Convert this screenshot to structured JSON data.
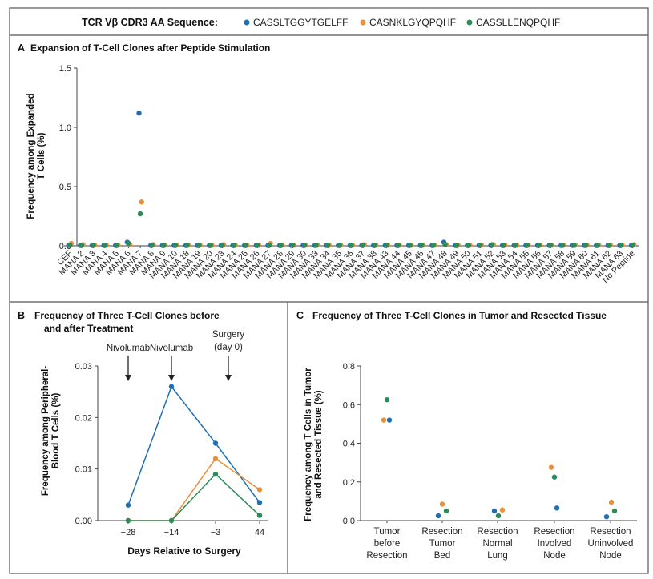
{
  "legend": {
    "title": "TCR Vβ CDR3 AA Sequence:",
    "items": [
      {
        "label": "CASSLTGGYTGELFF",
        "color": "#1f6fb4"
      },
      {
        "label": "CASNKLGYQPQHF",
        "color": "#e8913a"
      },
      {
        "label": "CASSLLENQPQHF",
        "color": "#2e8b57"
      }
    ]
  },
  "panels": {
    "a": {
      "letter": "A",
      "title": "Expansion of T-Cell Clones after Peptide Stimulation",
      "ylabel_line1": "Frequency among Expanded",
      "ylabel_line2": "T Cells (%)"
    },
    "b": {
      "letter": "B",
      "title_line1": "Frequency of Three T-Cell Clones before",
      "title_line2": "and after Treatment",
      "ylabel_line1": "Frequency among Peripheral-",
      "ylabel_line2": "Blood T Cells (%)",
      "xlabel": "Days Relative to Surgery"
    },
    "c": {
      "letter": "C",
      "title": "Frequency of Three T-Cell Clones in Tumor and Resected Tissue",
      "ylabel_line1": "Frequency among T Cells in Tumor",
      "ylabel_line2": "and Resected Tissue (%)"
    }
  },
  "chart_data": [
    {
      "type": "scatter",
      "ylim": [
        0,
        1.5
      ],
      "yticks": [
        "0.0",
        "0.5",
        "1.0",
        "1.5"
      ],
      "categories": [
        "CEF",
        "MANA 2",
        "MANA 3",
        "MANA 4",
        "MANA 5",
        "MANA 6",
        "MANA 7",
        "MANA 8",
        "MANA 9",
        "MANA 10",
        "MANA 18",
        "MANA 19",
        "MANA 20",
        "MANA 23",
        "MANA 24",
        "MANA 25",
        "MANA 26",
        "MANA 27",
        "MANA 28",
        "MANA 29",
        "MANA 30",
        "MANA 33",
        "MANA 34",
        "MANA 35",
        "MANA 36",
        "MANA 37",
        "MANA 38",
        "MANA 43",
        "MANA 44",
        "MANA 45",
        "MANA 46",
        "MANA 47",
        "MANA 48",
        "MANA 49",
        "MANA 50",
        "MANA 51",
        "MANA 52",
        "MANA 53",
        "MANA 54",
        "MANA 55",
        "MANA 56",
        "MANA 57",
        "MANA 58",
        "MANA 59",
        "MANA 60",
        "MANA 61",
        "MANA 62",
        "MANA 63",
        "No Peptide"
      ],
      "series": [
        {
          "name": "CASSLTGGYTGELFF",
          "values": [
            0.003,
            0.003,
            0.003,
            0.003,
            0.003,
            0.03,
            1.12,
            0.003,
            0.003,
            0.003,
            0.003,
            0.003,
            0.003,
            0.003,
            0.003,
            0.003,
            0.003,
            0.003,
            0.003,
            0.003,
            0.003,
            0.003,
            0.003,
            0.003,
            0.003,
            0.003,
            0.003,
            0.003,
            0.003,
            0.003,
            0.003,
            0.003,
            0.03,
            0.003,
            0.003,
            0.003,
            0.003,
            0.003,
            0.003,
            0.003,
            0.003,
            0.003,
            0.003,
            0.003,
            0.003,
            0.003,
            0.003,
            0.003,
            0.003
          ]
        },
        {
          "name": "CASNKLGYQPQHF",
          "values": [
            0.02,
            0.01,
            0.005,
            0.005,
            0.005,
            0.01,
            0.37,
            0.01,
            0.005,
            0.005,
            0.005,
            0.005,
            0.005,
            0.01,
            0.005,
            0.005,
            0.005,
            0.02,
            0.005,
            0.005,
            0.005,
            0.005,
            0.005,
            0.005,
            0.005,
            0.01,
            0.005,
            0.005,
            0.005,
            0.005,
            0.005,
            0.005,
            0.01,
            0.005,
            0.005,
            0.005,
            0.01,
            0.005,
            0.005,
            0.005,
            0.005,
            0.005,
            0.005,
            0.005,
            0.005,
            0.005,
            0.005,
            0.005,
            0.01
          ]
        },
        {
          "name": "CASSLLENQPQHF",
          "values": [
            0.005,
            0.005,
            0.005,
            0.005,
            0.005,
            0.02,
            0.27,
            0.005,
            0.005,
            0.005,
            0.005,
            0.005,
            0.005,
            0.005,
            0.005,
            0.005,
            0.005,
            0.005,
            0.005,
            0.005,
            0.005,
            0.005,
            0.005,
            0.005,
            0.005,
            0.005,
            0.005,
            0.005,
            0.005,
            0.005,
            0.005,
            0.005,
            0.01,
            0.005,
            0.005,
            0.005,
            0.01,
            0.005,
            0.005,
            0.005,
            0.005,
            0.005,
            0.005,
            0.005,
            0.005,
            0.005,
            0.005,
            0.005,
            0.005
          ]
        }
      ]
    },
    {
      "type": "line",
      "x": [
        -28,
        -14,
        -3,
        44
      ],
      "xticks": [
        "−28",
        "−14",
        "−3",
        "44"
      ],
      "ylim": [
        0,
        0.03
      ],
      "yticks": [
        "0.00",
        "0.01",
        "0.02",
        "0.03"
      ],
      "annotations": [
        {
          "text": "Nivolumab",
          "x": -28
        },
        {
          "text": "Nivolumab",
          "x": -14
        },
        {
          "text_line1": "Surgery",
          "text_line2": "(day 0)",
          "x": 0
        }
      ],
      "series": [
        {
          "name": "CASSLTGGYTGELFF",
          "values": [
            0.003,
            0.026,
            0.015,
            0.0035
          ]
        },
        {
          "name": "CASNKLGYQPQHF",
          "values": [
            0.0,
            0.0,
            0.012,
            0.006
          ]
        },
        {
          "name": "CASSLLENQPQHF",
          "values": [
            0.0,
            0.0,
            0.009,
            0.001
          ]
        }
      ]
    },
    {
      "type": "scatter",
      "ylim": [
        0,
        0.8
      ],
      "yticks": [
        "0.0",
        "0.2",
        "0.4",
        "0.6",
        "0.8"
      ],
      "categories": [
        [
          "Tumor",
          "before",
          "Resection"
        ],
        [
          "Resection",
          "Tumor",
          "Bed"
        ],
        [
          "Resection",
          "Normal",
          "Lung"
        ],
        [
          "Resection",
          "Involved",
          "Node"
        ],
        [
          "Resection",
          "Uninvolved",
          "Node"
        ]
      ],
      "series": [
        {
          "name": "CASSLTGGYTGELFF",
          "values": [
            0.52,
            0.025,
            0.05,
            0.065,
            0.02
          ]
        },
        {
          "name": "CASNKLGYQPQHF",
          "values": [
            0.52,
            0.085,
            0.055,
            0.275,
            0.095
          ]
        },
        {
          "name": "CASSLLENQPQHF",
          "values": [
            0.625,
            0.05,
            0.025,
            0.225,
            0.05
          ]
        }
      ]
    }
  ]
}
